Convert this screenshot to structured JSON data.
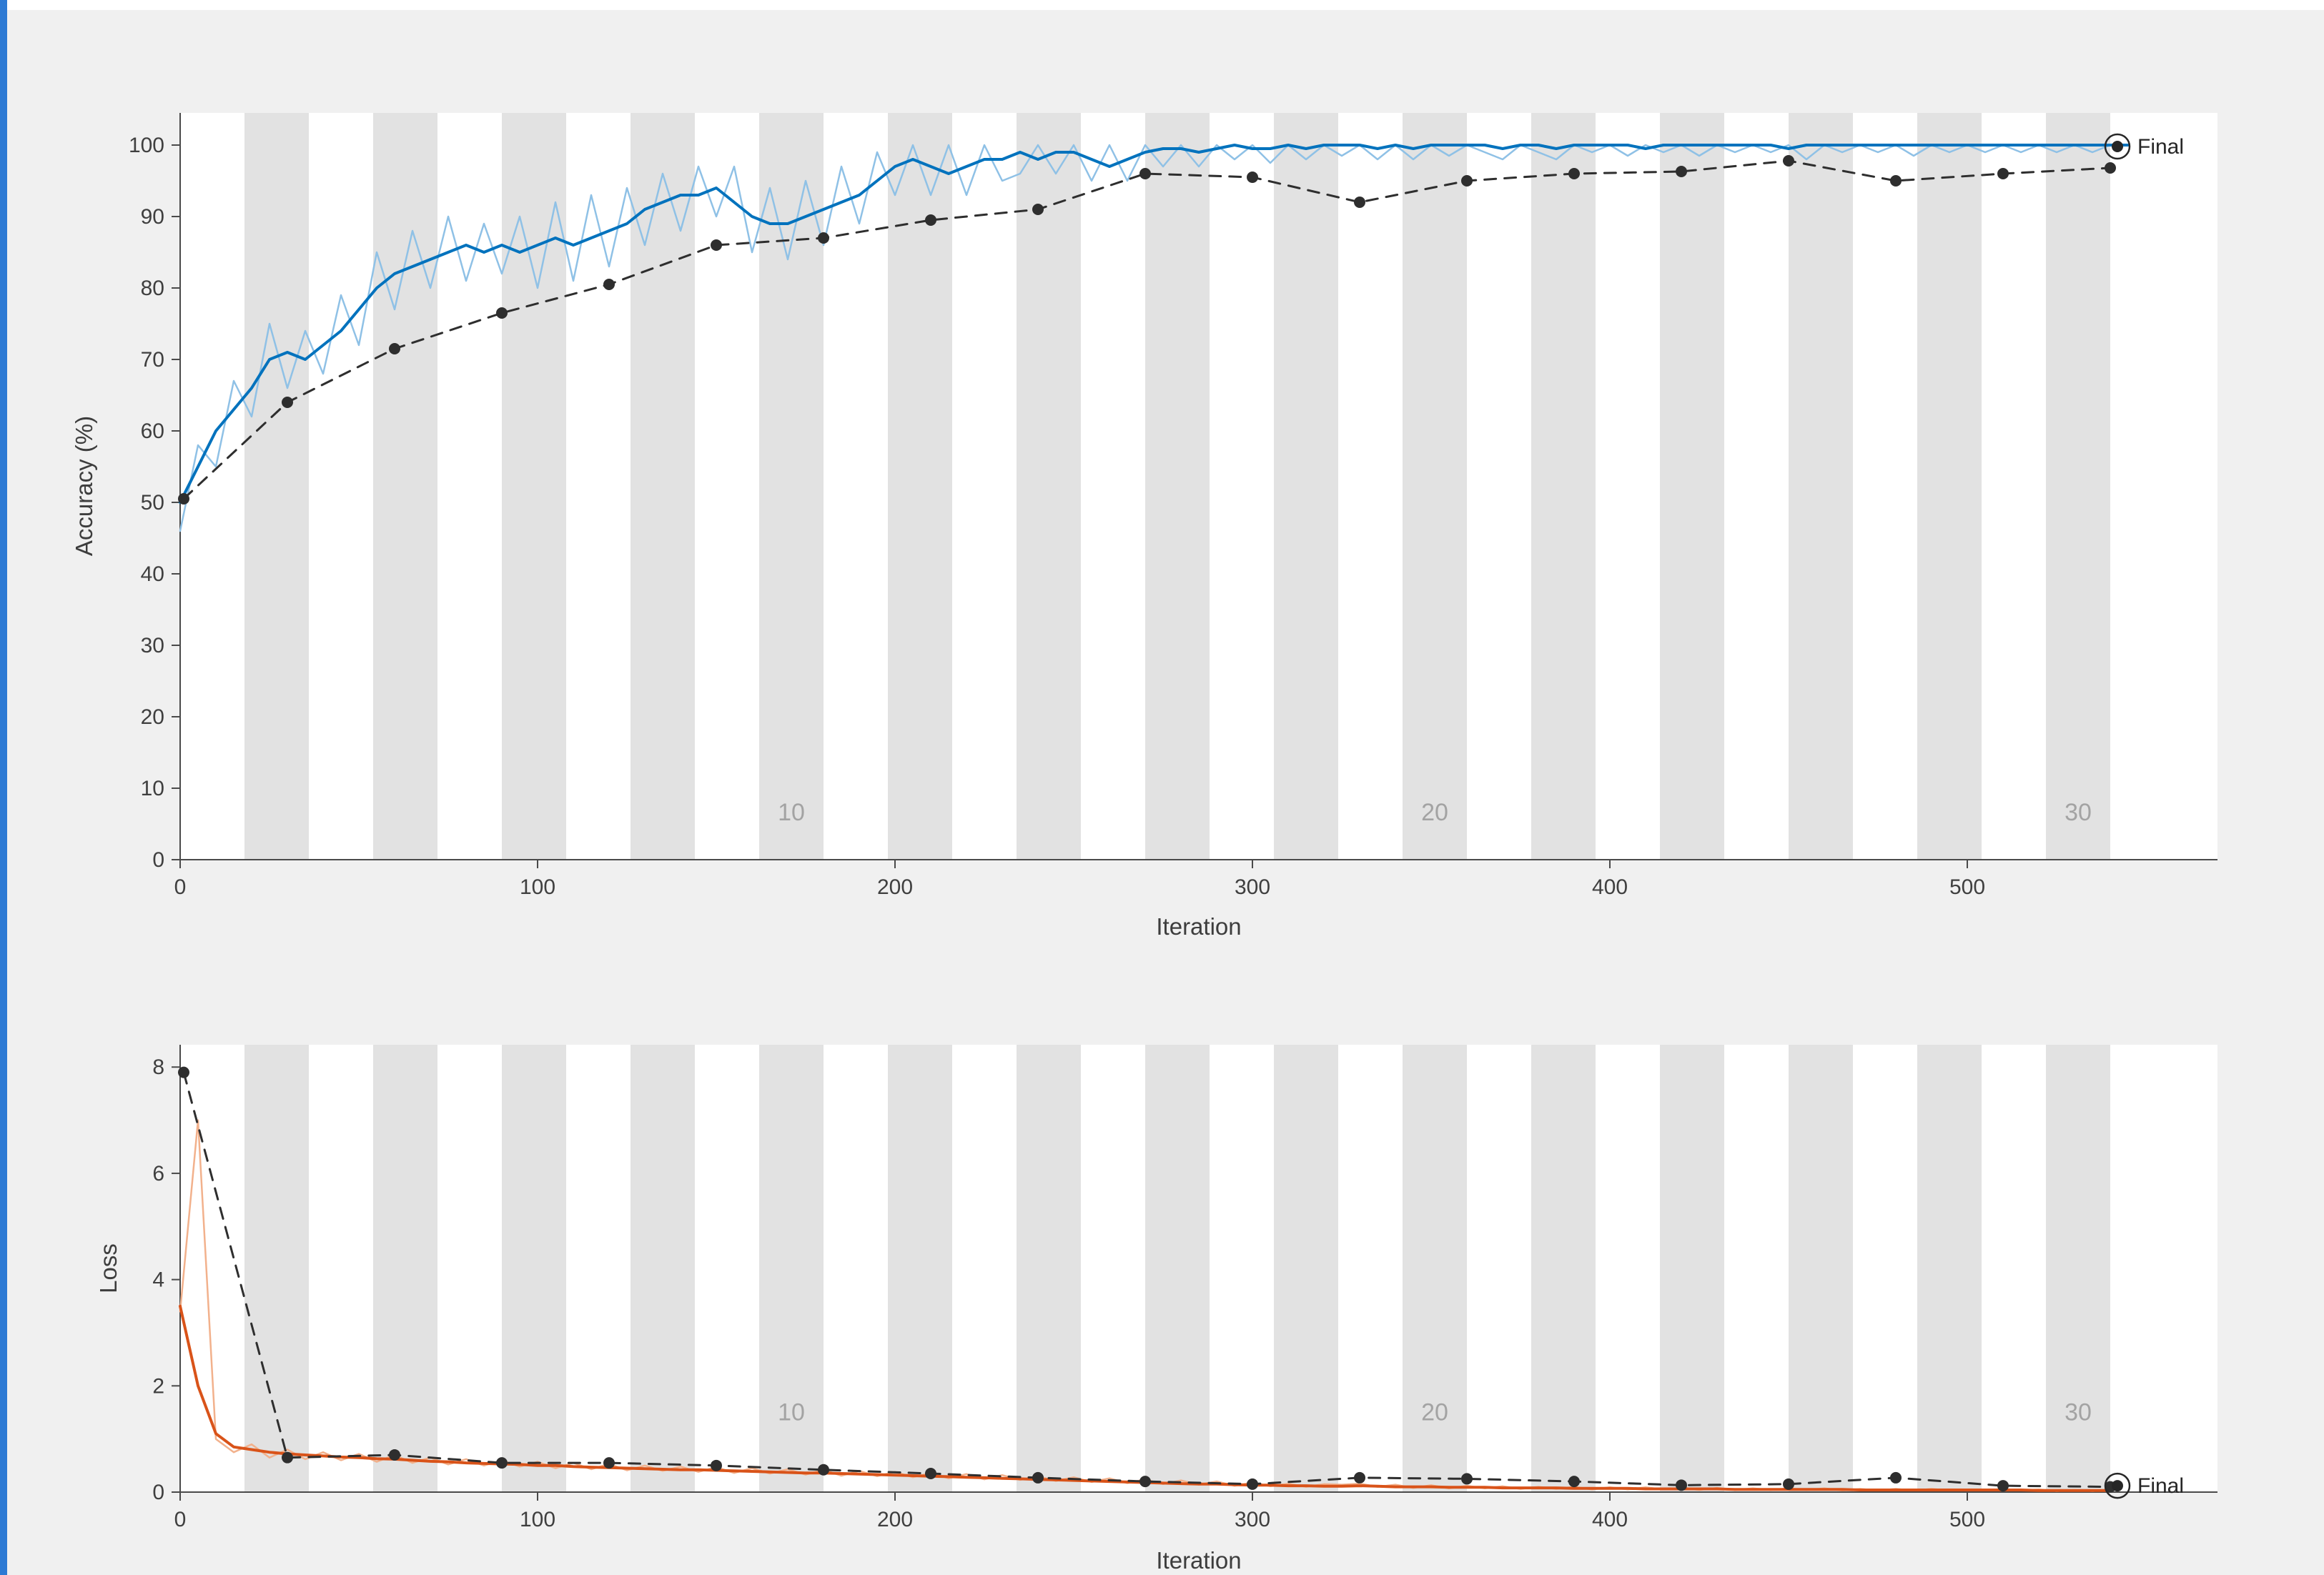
{
  "figure": {
    "background": "#f0f0f0",
    "plot_background": "#ffffff",
    "epoch_band_color": "#e2e2e2",
    "epoch_label_color": "#a3a3a3",
    "axis_color": "#4a4a4a",
    "tick_label_color": "#3f3f3f",
    "final_marker_color": "#262626",
    "accent_strip_color": "#2d7ad4",
    "training_accuracy_color": "#0072bd",
    "training_accuracy_raw_color": "#8fc1e6",
    "training_loss_color": "#d95319",
    "training_loss_raw_color": "#f2b18c",
    "validation_color": "#2e2e2e"
  },
  "chart_data": [
    {
      "type": "line",
      "title": "",
      "xlabel": "Iteration",
      "ylabel": "Accuracy (%)",
      "xlim": [
        0,
        570
      ],
      "ylim": [
        0,
        104.5
      ],
      "xticks": [
        0,
        100,
        200,
        300,
        400,
        500
      ],
      "yticks": [
        0,
        10,
        20,
        30,
        40,
        50,
        60,
        70,
        80,
        90,
        100
      ],
      "grid": false,
      "legend": "none",
      "epochs": {
        "count": 30,
        "iterations_per_epoch": 18,
        "label_y": 5.5,
        "labels": [
          {
            "text": "10",
            "iteration": 171
          },
          {
            "text": "20",
            "iteration": 351
          },
          {
            "text": "30",
            "iteration": 531
          }
        ]
      },
      "series": [
        {
          "id": "training-accuracy-raw-line",
          "name": "Training accuracy (raw)",
          "color": "#8fc1e6",
          "width": 2.5,
          "x_start": 0,
          "x_step": 5,
          "values": [
            46,
            58,
            55,
            67,
            62,
            75,
            66,
            74,
            68,
            79,
            72,
            85,
            77,
            88,
            80,
            90,
            81,
            89,
            82,
            90,
            80,
            92,
            81,
            93,
            83,
            94,
            86,
            96,
            88,
            97,
            90,
            97,
            85,
            94,
            84,
            95,
            86,
            97,
            89,
            99,
            93,
            100,
            93,
            100,
            93,
            100,
            95,
            96,
            100,
            96,
            100,
            95,
            100,
            95,
            100,
            97,
            100,
            97,
            100,
            98,
            100,
            97.5,
            100,
            98,
            100,
            98.5,
            100,
            98,
            100,
            98,
            100,
            98.5,
            100,
            99,
            98,
            100,
            99,
            98,
            100,
            99,
            100,
            98.5,
            100,
            99,
            100,
            98.5,
            100,
            99,
            100,
            99,
            100,
            98,
            100,
            99,
            100,
            99,
            100,
            98.5,
            100,
            99,
            100,
            99,
            100,
            99,
            100,
            99,
            100,
            99,
            100
          ]
        },
        {
          "id": "training-accuracy-smoothed-line",
          "name": "Training accuracy (smoothed)",
          "color": "#0072bd",
          "width": 4,
          "x_start": 0,
          "x_step": 5,
          "values": [
            50,
            55,
            60,
            63,
            66,
            70,
            71,
            70,
            72,
            74,
            77,
            80,
            82,
            83,
            84,
            85,
            86,
            85,
            86,
            85,
            86,
            87,
            86,
            87,
            88,
            89,
            91,
            92,
            93,
            93,
            94,
            92,
            90,
            89,
            89,
            90,
            91,
            92,
            93,
            95,
            97,
            98,
            97,
            96,
            97,
            98,
            98,
            99,
            98,
            99,
            99,
            98,
            97,
            98,
            99,
            99.5,
            99.5,
            99,
            99.5,
            100,
            99.5,
            99.5,
            100,
            99.5,
            100,
            100,
            100,
            99.5,
            100,
            99.5,
            100,
            100,
            100,
            100,
            99.5,
            100,
            100,
            99.5,
            100,
            100,
            100,
            100,
            99.5,
            100,
            100,
            100,
            100,
            100,
            100,
            100,
            99.5,
            100,
            100,
            100,
            100,
            100,
            100,
            100,
            100,
            100,
            100,
            100,
            100,
            100,
            100,
            100,
            100,
            100,
            100,
            100
          ]
        },
        {
          "id": "validation-accuracy-line",
          "name": "Validation accuracy",
          "color": "#2e2e2e",
          "width": 3,
          "dash": [
            16,
            12
          ],
          "marker": "dot",
          "x": [
            1,
            30,
            60,
            90,
            120,
            150,
            180,
            210,
            240,
            270,
            300,
            330,
            360,
            390,
            420,
            450,
            480,
            510,
            540
          ],
          "values": [
            50.5,
            64,
            71.5,
            76.5,
            80.5,
            86,
            87,
            89.5,
            91,
            96,
            95.5,
            92,
            95,
            96,
            96.3,
            97.8,
            95,
            96,
            96.8
          ]
        }
      ],
      "final_marker": {
        "iteration": 542,
        "value": 99.8,
        "label": "Final"
      }
    },
    {
      "type": "line",
      "title": "",
      "xlabel": "Iteration",
      "ylabel": "Loss",
      "xlim": [
        0,
        570
      ],
      "ylim": [
        0,
        8.42
      ],
      "xticks": [
        0,
        100,
        200,
        300,
        400,
        500
      ],
      "yticks": [
        0,
        2,
        4,
        6,
        8
      ],
      "grid": false,
      "legend": "none",
      "epochs": {
        "count": 30,
        "iterations_per_epoch": 18,
        "label_y": 1.35,
        "labels": [
          {
            "text": "10",
            "iteration": 171
          },
          {
            "text": "20",
            "iteration": 351
          },
          {
            "text": "30",
            "iteration": 531
          }
        ]
      },
      "series": [
        {
          "id": "training-loss-raw-line",
          "name": "Training loss (raw)",
          "color": "#f2b18c",
          "width": 2.5,
          "x_start": 0,
          "x_step": 5,
          "values": [
            3.4,
            7.0,
            1.0,
            0.75,
            0.9,
            0.65,
            0.8,
            0.62,
            0.75,
            0.6,
            0.72,
            0.57,
            0.7,
            0.55,
            0.65,
            0.52,
            0.62,
            0.5,
            0.6,
            0.48,
            0.57,
            0.45,
            0.55,
            0.43,
            0.53,
            0.41,
            0.5,
            0.4,
            0.48,
            0.38,
            0.47,
            0.36,
            0.45,
            0.35,
            0.43,
            0.33,
            0.42,
            0.31,
            0.4,
            0.3,
            0.38,
            0.28,
            0.36,
            0.26,
            0.34,
            0.24,
            0.32,
            0.23,
            0.3,
            0.21,
            0.28,
            0.19,
            0.26,
            0.17,
            0.24,
            0.15,
            0.22,
            0.14,
            0.2,
            0.12,
            0.18,
            0.11,
            0.16,
            0.1,
            0.15,
            0.14,
            0.16,
            0.1,
            0.14,
            0.08,
            0.13,
            0.07,
            0.12,
            0.07,
            0.11,
            0.06,
            0.1,
            0.06,
            0.1,
            0.05,
            0.09,
            0.05,
            0.09,
            0.05,
            0.08,
            0.04,
            0.08,
            0.04,
            0.07,
            0.04,
            0.07,
            0.04,
            0.07,
            0.03,
            0.06,
            0.03,
            0.06,
            0.03,
            0.06,
            0.03,
            0.05,
            0.03,
            0.05,
            0.03,
            0.05,
            0.02,
            0.04,
            0.02,
            0.04
          ]
        },
        {
          "id": "training-loss-smoothed-line",
          "name": "Training loss (smoothed)",
          "color": "#d95319",
          "width": 4,
          "x_start": 0,
          "x_step": 5,
          "values": [
            3.5,
            2.0,
            1.1,
            0.85,
            0.8,
            0.75,
            0.72,
            0.7,
            0.68,
            0.66,
            0.65,
            0.63,
            0.62,
            0.6,
            0.58,
            0.57,
            0.55,
            0.54,
            0.53,
            0.52,
            0.5,
            0.5,
            0.48,
            0.47,
            0.46,
            0.45,
            0.44,
            0.43,
            0.42,
            0.42,
            0.41,
            0.4,
            0.39,
            0.38,
            0.37,
            0.36,
            0.36,
            0.35,
            0.34,
            0.33,
            0.32,
            0.31,
            0.3,
            0.29,
            0.28,
            0.27,
            0.26,
            0.25,
            0.24,
            0.23,
            0.22,
            0.21,
            0.2,
            0.19,
            0.18,
            0.17,
            0.16,
            0.15,
            0.15,
            0.14,
            0.13,
            0.13,
            0.12,
            0.12,
            0.11,
            0.11,
            0.12,
            0.11,
            0.1,
            0.1,
            0.1,
            0.09,
            0.09,
            0.09,
            0.08,
            0.08,
            0.08,
            0.08,
            0.07,
            0.07,
            0.07,
            0.07,
            0.06,
            0.06,
            0.06,
            0.06,
            0.06,
            0.05,
            0.05,
            0.05,
            0.05,
            0.05,
            0.05,
            0.05,
            0.04,
            0.04,
            0.04,
            0.04,
            0.04,
            0.04,
            0.04,
            0.04,
            0.04,
            0.04,
            0.03,
            0.03,
            0.03,
            0.03,
            0.03
          ]
        },
        {
          "id": "validation-loss-line",
          "name": "Validation loss",
          "color": "#2e2e2e",
          "width": 3,
          "dash": [
            16,
            12
          ],
          "marker": "dot",
          "x": [
            1,
            30,
            60,
            90,
            120,
            150,
            180,
            210,
            240,
            270,
            300,
            330,
            360,
            390,
            420,
            450,
            480,
            510,
            540
          ],
          "values": [
            7.9,
            0.65,
            0.7,
            0.55,
            0.55,
            0.5,
            0.42,
            0.35,
            0.27,
            0.2,
            0.15,
            0.27,
            0.25,
            0.2,
            0.13,
            0.15,
            0.27,
            0.12,
            0.1
          ]
        }
      ],
      "final_marker": {
        "iteration": 542,
        "value": 0.12,
        "label": "Final"
      }
    }
  ]
}
